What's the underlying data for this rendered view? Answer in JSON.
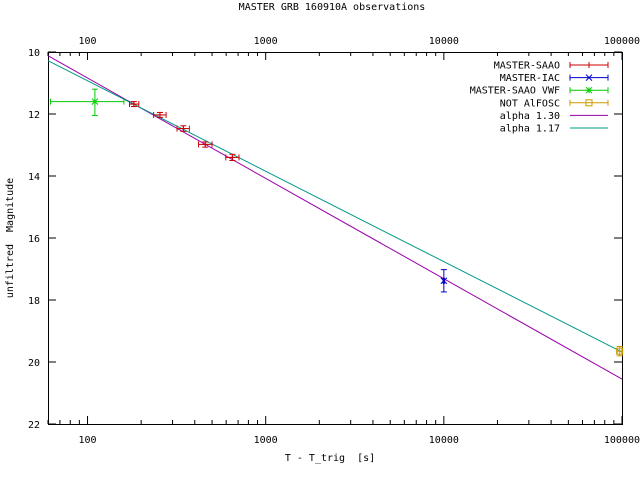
{
  "chart_data": {
    "type": "scatter",
    "title": "MASTER GRB 160910A observations",
    "xlabel": "T - T_trig  [s]",
    "ylabel": "unfiltred  Magnitude",
    "xscale": "log",
    "xlim": [
      60,
      100000
    ],
    "ylim": [
      22,
      10
    ],
    "y_inverted": true,
    "x_ticks": [
      {
        "value": 100,
        "label": "100"
      },
      {
        "value": 1000,
        "label": "1000"
      },
      {
        "value": 10000,
        "label": "10000"
      },
      {
        "value": 100000,
        "label": "100000"
      }
    ],
    "y_ticks": [
      {
        "value": 10,
        "label": "10"
      },
      {
        "value": 12,
        "label": "12"
      },
      {
        "value": 14,
        "label": "14"
      },
      {
        "value": 16,
        "label": "16"
      },
      {
        "value": 18,
        "label": "18"
      },
      {
        "value": 20,
        "label": "20"
      },
      {
        "value": 22,
        "label": "22"
      }
    ],
    "top_axis_labels": true,
    "legend_position": "top-right",
    "grid": false,
    "series": [
      {
        "name": "MASTER-SAAO",
        "kind": "points",
        "color": "#cc0000",
        "marker": "plus",
        "points": [
          {
            "x": 182,
            "y": 11.68,
            "xerr": [
              172,
              194
            ],
            "yerr": [
              11.6,
              11.76
            ]
          },
          {
            "x": 255,
            "y": 12.03,
            "xerr": [
              235,
              276
            ],
            "yerr": [
              11.95,
              12.11
            ]
          },
          {
            "x": 345,
            "y": 12.47,
            "xerr": [
              318,
              373
            ],
            "yerr": [
              12.38,
              12.56
            ]
          },
          {
            "x": 458,
            "y": 12.98,
            "xerr": [
              420,
              500
            ],
            "yerr": [
              12.9,
              13.07
            ]
          },
          {
            "x": 650,
            "y": 13.4,
            "xerr": [
              597,
              708
            ],
            "yerr": [
              13.3,
              13.5
            ]
          }
        ]
      },
      {
        "name": "MASTER-IAC",
        "kind": "points",
        "color": "#0000cc",
        "marker": "cross",
        "points": [
          {
            "x": 10000,
            "y": 17.38,
            "xerr": [
              9900,
              10100
            ],
            "yerr": [
              17.02,
              17.74
            ]
          }
        ]
      },
      {
        "name": "MASTER-SAAO VWF",
        "kind": "points",
        "color": "#00cc00",
        "marker": "star",
        "points": [
          {
            "x": 110,
            "y": 11.6,
            "xerr": [
              62,
              160
            ],
            "yerr": [
              11.2,
              12.05
            ]
          }
        ]
      },
      {
        "name": "NOT AlFOSC",
        "kind": "points",
        "color": "#cc9900",
        "marker": "box",
        "points": [
          {
            "x": 97000,
            "y": 19.65,
            "xerr": [
              94000,
              99800
            ],
            "yerr": [
              19.5,
              19.8
            ]
          }
        ]
      },
      {
        "name": "alpha 1.30",
        "kind": "line",
        "color": "#9900aa",
        "line": [
          {
            "x": 60,
            "y": 10.12
          },
          {
            "x": 100000,
            "y": 20.55
          }
        ]
      },
      {
        "name": "alpha 1.17",
        "kind": "line",
        "color": "#009988",
        "line": [
          {
            "x": 60,
            "y": 10.28
          },
          {
            "x": 100000,
            "y": 19.68
          }
        ]
      }
    ]
  }
}
